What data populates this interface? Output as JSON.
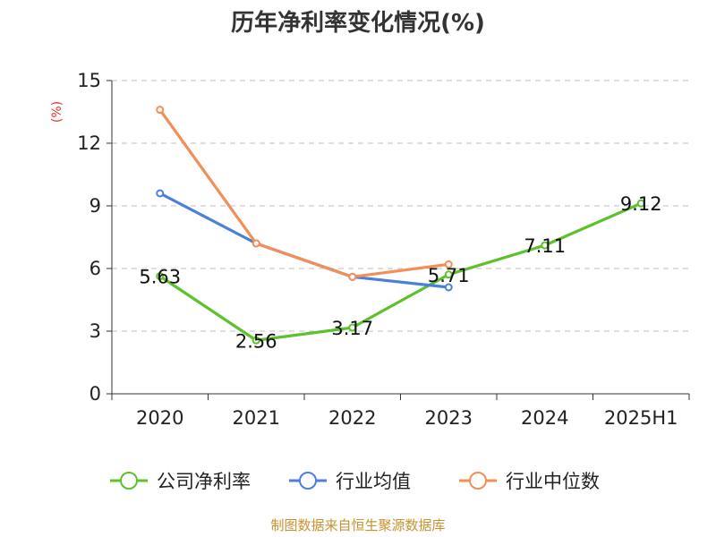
{
  "chart_data": {
    "type": "line",
    "title": "历年净利率变化情况(%)",
    "ylabel": "(%)",
    "categories": [
      "2020",
      "2021",
      "2022",
      "2023",
      "2024",
      "2025H1"
    ],
    "ylim": [
      0,
      15
    ],
    "yticks": [
      "0",
      "3",
      "6",
      "9",
      "12",
      "15"
    ],
    "grid": true,
    "legend_position": "bottom",
    "series": [
      {
        "name": "公司净利率",
        "color": "#5cc12b",
        "values": [
          5.63,
          2.56,
          3.17,
          5.71,
          7.11,
          9.12
        ],
        "labels": [
          "5.63",
          "2.56",
          "3.17",
          "5.71",
          "7.11",
          "9.12"
        ]
      },
      {
        "name": "行业均值",
        "color": "#4a7fdc",
        "values": [
          9.6,
          7.2,
          5.6,
          5.1,
          null,
          null
        ]
      },
      {
        "name": "行业中位数",
        "color": "#f28e57",
        "values": [
          13.6,
          7.2,
          5.6,
          6.2,
          null,
          null
        ]
      }
    ]
  },
  "source": "制图数据来自恒生聚源数据库"
}
